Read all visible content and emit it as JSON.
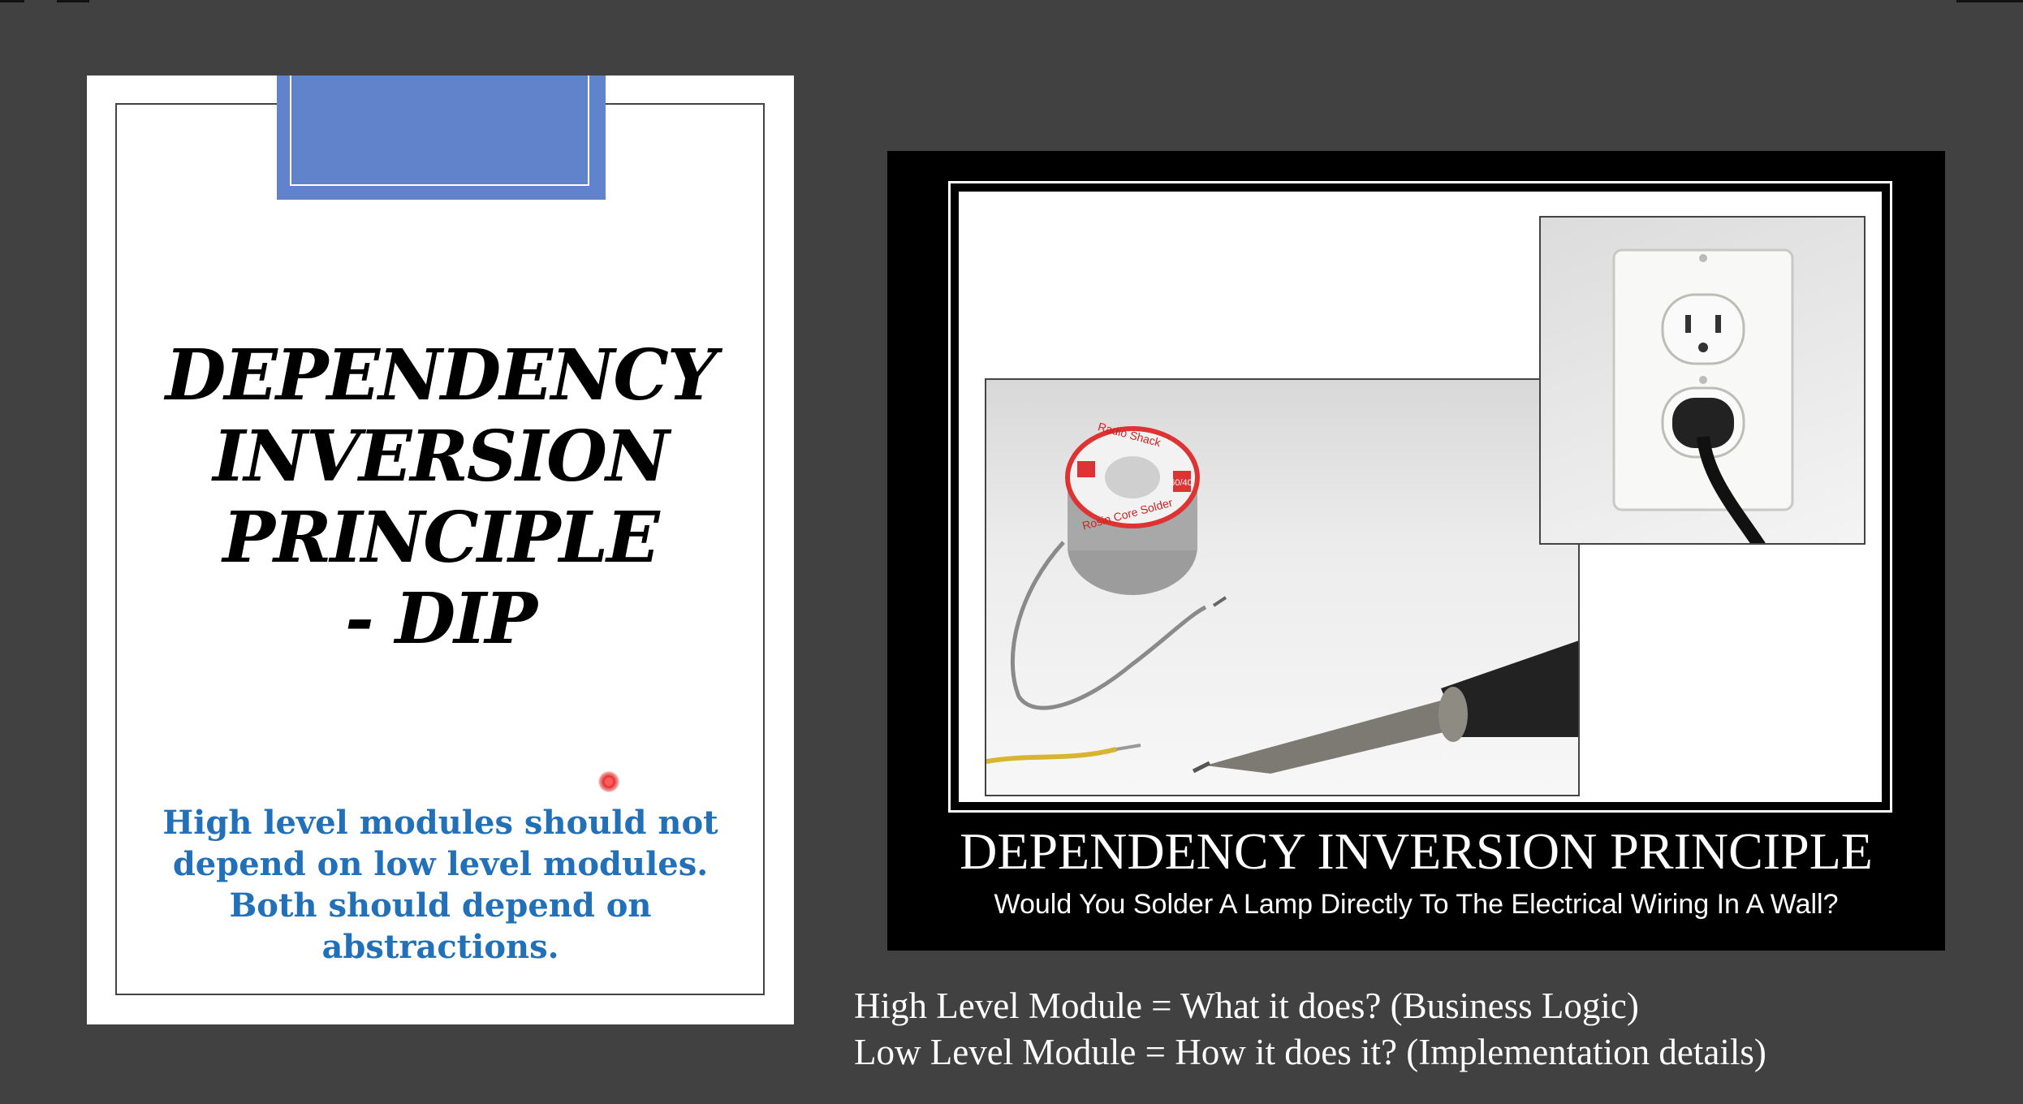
{
  "left_slide": {
    "title_lines": [
      "DEPENDENCY",
      "INVERSION",
      "PRINCIPLE",
      "- DIP"
    ],
    "subtitle_lines": [
      "High level modules should not",
      "depend on low level modules.",
      "Both should depend on",
      "abstractions."
    ],
    "accent_color": "#6083cc",
    "subtitle_color": "#2270b8"
  },
  "poster": {
    "title": "DEPENDENCY INVERSION PRINCIPLE",
    "subtitle": "Would You Solder A Lamp Directly To The Electrical Wiring In A Wall?",
    "solder_label_top": "Radio Shack",
    "solder_label_side": "Rosin Core Solder",
    "solder_ratio": "60/40"
  },
  "notes": [
    "High Level Module = What it does? (Business Logic)",
    "Low Level Module = How it does it? (Implementation details)"
  ]
}
